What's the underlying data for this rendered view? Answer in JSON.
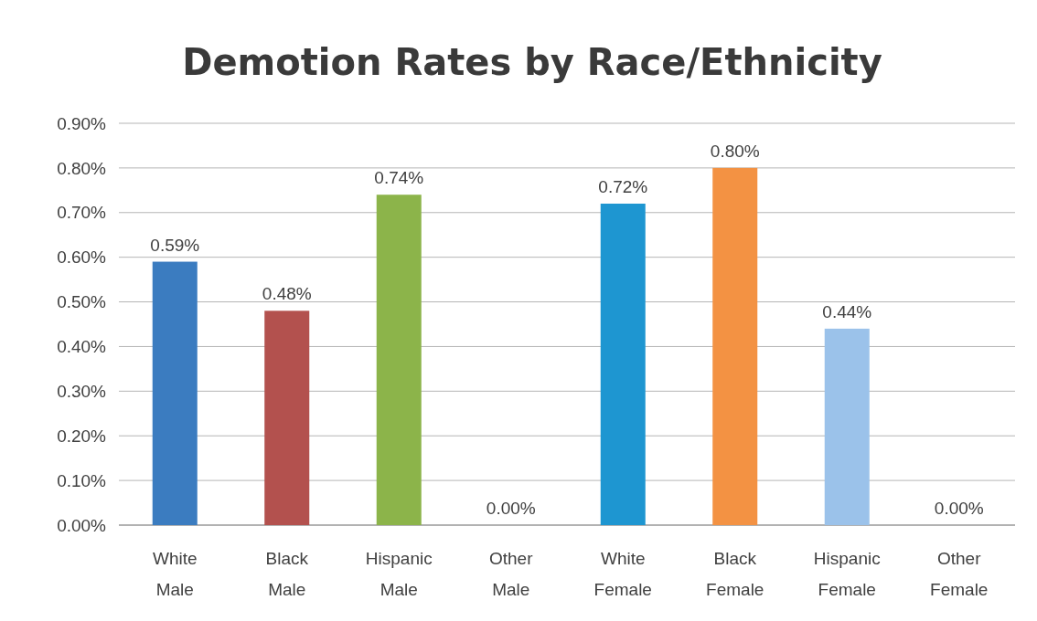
{
  "chart_data": {
    "type": "bar",
    "title": "Demotion Rates by Race/Ethnicity",
    "categories": [
      "White Male",
      "Black Male",
      "Hispanic Male",
      "Other Male",
      "White Female",
      "Black Female",
      "Hispanic Female",
      "Other Female"
    ],
    "values": [
      0.59,
      0.48,
      0.74,
      0,
      0.72,
      0.8,
      0.44,
      0
    ],
    "colors": [
      "#3b7cc0",
      "#b3514e",
      "#8cb44a",
      "#7f63a3",
      "#1e96d1",
      "#f39243",
      "#9bc2ea",
      "#c9c9c9"
    ],
    "value_labels": [
      "0.59%",
      "0.48%",
      "0.74%",
      "0.00%",
      "0.72%",
      "0.80%",
      "0.44%",
      "0.00%"
    ],
    "ylim": [
      0,
      0.9
    ],
    "yticks": [
      {
        "value": 0,
        "label": "0.00%"
      },
      {
        "value": 0.1,
        "label": "0.10%"
      },
      {
        "value": 0.2,
        "label": "0.20%"
      },
      {
        "value": 0.3,
        "label": "0.30%"
      },
      {
        "value": 0.4,
        "label": "0.40%"
      },
      {
        "value": 0.5,
        "label": "0.50%"
      },
      {
        "value": 0.6,
        "label": "0.60%"
      },
      {
        "value": 0.7,
        "label": "0.70%"
      },
      {
        "value": 0.8,
        "label": "0.80%"
      },
      {
        "value": 0.9,
        "label": "0.90%"
      }
    ],
    "grid": "y"
  }
}
